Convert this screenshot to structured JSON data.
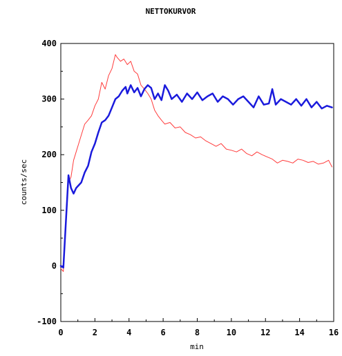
{
  "chart_data": {
    "type": "line",
    "title": "NETTOKURVOR",
    "xlabel": "min",
    "ylabel": "counts/sec",
    "xlim": [
      0,
      16
    ],
    "ylim": [
      -100,
      400
    ],
    "xticks": [
      0,
      2,
      4,
      6,
      8,
      10,
      12,
      14,
      16
    ],
    "xtick_labels": [
      "0",
      "2",
      "4",
      "6",
      "8",
      "10",
      "12",
      "14",
      "16"
    ],
    "yticks": [
      -100,
      0,
      100,
      200,
      300,
      400
    ],
    "ytick_labels": [
      "-100",
      "0",
      "100",
      "200",
      "300",
      "400"
    ],
    "grid": false,
    "legend": "none",
    "series": [
      {
        "color": "#ff3b3b",
        "stroke_width": 1,
        "x": [
          0,
          0.15,
          0.3,
          0.45,
          0.6,
          0.75,
          0.9,
          1.05,
          1.2,
          1.4,
          1.6,
          1.8,
          2.0,
          2.2,
          2.4,
          2.6,
          2.8,
          3.0,
          3.2,
          3.3,
          3.5,
          3.7,
          3.9,
          4.1,
          4.3,
          4.5,
          4.7,
          4.9,
          5.1,
          5.3,
          5.5,
          5.7,
          5.9,
          6.1,
          6.4,
          6.7,
          7.0,
          7.3,
          7.6,
          7.9,
          8.2,
          8.5,
          8.8,
          9.1,
          9.4,
          9.7,
          10.0,
          10.3,
          10.6,
          10.9,
          11.2,
          11.5,
          11.8,
          12.1,
          12.4,
          12.7,
          13.0,
          13.3,
          13.6,
          13.9,
          14.2,
          14.5,
          14.8,
          15.1,
          15.4,
          15.7,
          15.9
        ],
        "y": [
          -5,
          -10,
          90,
          150,
          160,
          190,
          205,
          220,
          235,
          255,
          262,
          270,
          288,
          300,
          330,
          318,
          342,
          355,
          380,
          375,
          368,
          372,
          362,
          368,
          350,
          345,
          325,
          318,
          310,
          300,
          280,
          270,
          262,
          255,
          258,
          248,
          250,
          240,
          236,
          230,
          232,
          225,
          220,
          215,
          220,
          210,
          208,
          205,
          210,
          202,
          198,
          205,
          200,
          196,
          192,
          185,
          190,
          188,
          185,
          192,
          190,
          186,
          188,
          183,
          185,
          190,
          178
        ]
      },
      {
        "color": "#1a1adc",
        "stroke_width": 2.5,
        "x": [
          0,
          0.15,
          0.3,
          0.45,
          0.6,
          0.75,
          0.9,
          1.05,
          1.2,
          1.4,
          1.6,
          1.8,
          2.0,
          2.2,
          2.4,
          2.6,
          2.8,
          3.0,
          3.2,
          3.4,
          3.6,
          3.8,
          3.9,
          4.1,
          4.3,
          4.5,
          4.7,
          4.9,
          5.1,
          5.3,
          5.5,
          5.7,
          5.9,
          6.1,
          6.3,
          6.5,
          6.8,
          7.1,
          7.4,
          7.7,
          8.0,
          8.3,
          8.6,
          8.9,
          9.2,
          9.5,
          9.8,
          10.1,
          10.4,
          10.7,
          11.0,
          11.3,
          11.6,
          11.9,
          12.2,
          12.4,
          12.6,
          12.9,
          13.2,
          13.5,
          13.8,
          14.1,
          14.4,
          14.7,
          15.0,
          15.3,
          15.6,
          15.9
        ],
        "y": [
          0,
          -3,
          80,
          163,
          140,
          130,
          140,
          145,
          150,
          168,
          180,
          205,
          220,
          240,
          258,
          262,
          270,
          285,
          300,
          305,
          315,
          322,
          310,
          325,
          312,
          320,
          305,
          318,
          325,
          320,
          300,
          310,
          298,
          325,
          315,
          300,
          308,
          295,
          310,
          300,
          312,
          298,
          305,
          310,
          295,
          305,
          300,
          290,
          300,
          305,
          295,
          285,
          305,
          290,
          292,
          318,
          290,
          300,
          295,
          290,
          300,
          288,
          300,
          285,
          295,
          283,
          288,
          285
        ]
      }
    ]
  }
}
